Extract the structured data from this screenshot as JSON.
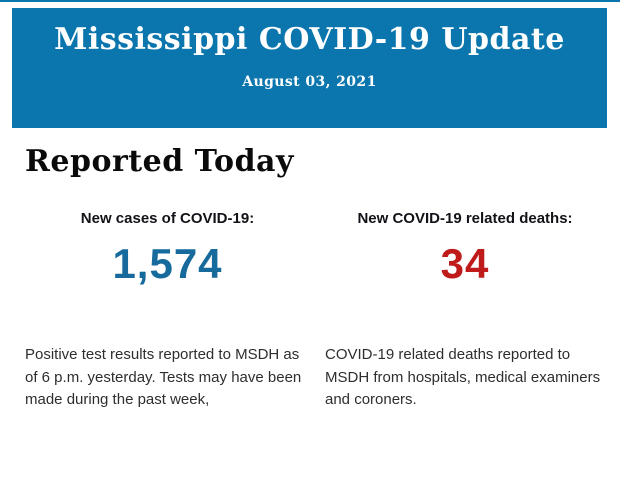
{
  "banner": {
    "title": "Mississippi COVID-19 Update",
    "date": "August 03, 2021"
  },
  "section": {
    "heading": "Reported Today"
  },
  "stats": [
    {
      "label": "New cases of COVID-19:",
      "value": "1,574",
      "description": "Positive test results reported to MSDH as of 6 p.m. yesterday. Tests may have been made during the past week,"
    },
    {
      "label": "New COVID-19 related deaths:",
      "value": "34",
      "description": "COVID-19 related deaths reported to MSDH from hospitals, medical examiners and coroners."
    }
  ],
  "colors": {
    "banner_blue": "#0b76ad",
    "cases_blue": "#176a9c",
    "deaths_red": "#c01b1b"
  }
}
